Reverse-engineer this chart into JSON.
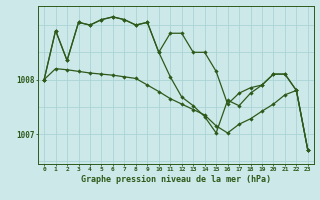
{
  "title": "Graphe pression niveau de la mer (hPa)",
  "background_color": "#cce8e8",
  "grid_color": "#aad4d4",
  "line_color": "#2d5a1b",
  "x_ticks": [
    0,
    1,
    2,
    3,
    4,
    5,
    6,
    7,
    8,
    9,
    10,
    11,
    12,
    13,
    14,
    15,
    16,
    17,
    18,
    19,
    20,
    21,
    22,
    23
  ],
  "ylim": [
    1006.45,
    1009.35
  ],
  "yticks": [
    1007,
    1008
  ],
  "line1": [
    1008.0,
    1008.9,
    1008.35,
    1009.05,
    1009.0,
    1009.1,
    1009.15,
    1009.1,
    1009.0,
    1009.05,
    1008.5,
    1008.85,
    1008.85,
    1008.5,
    1008.5,
    1008.15,
    1007.55,
    1007.75,
    1007.85,
    1007.9,
    1008.1,
    1008.1,
    1007.8,
    1006.7
  ],
  "line2": [
    1008.0,
    1008.2,
    1008.18,
    1008.15,
    1008.12,
    1008.1,
    1008.08,
    1008.05,
    1008.02,
    1007.9,
    1007.78,
    1007.65,
    1007.55,
    1007.45,
    1007.35,
    1007.15,
    1007.02,
    1007.18,
    1007.28,
    1007.42,
    1007.55,
    1007.72,
    1007.8,
    1006.7
  ],
  "line3": [
    1008.0,
    1008.9,
    1008.35,
    1009.05,
    1009.0,
    1009.1,
    1009.15,
    1009.1,
    1009.0,
    1009.05,
    1008.5,
    1008.05,
    1007.68,
    1007.52,
    1007.32,
    1007.02,
    1007.62,
    1007.52,
    1007.75,
    1007.9,
    1008.1,
    1008.1,
    1007.8,
    1006.7
  ]
}
